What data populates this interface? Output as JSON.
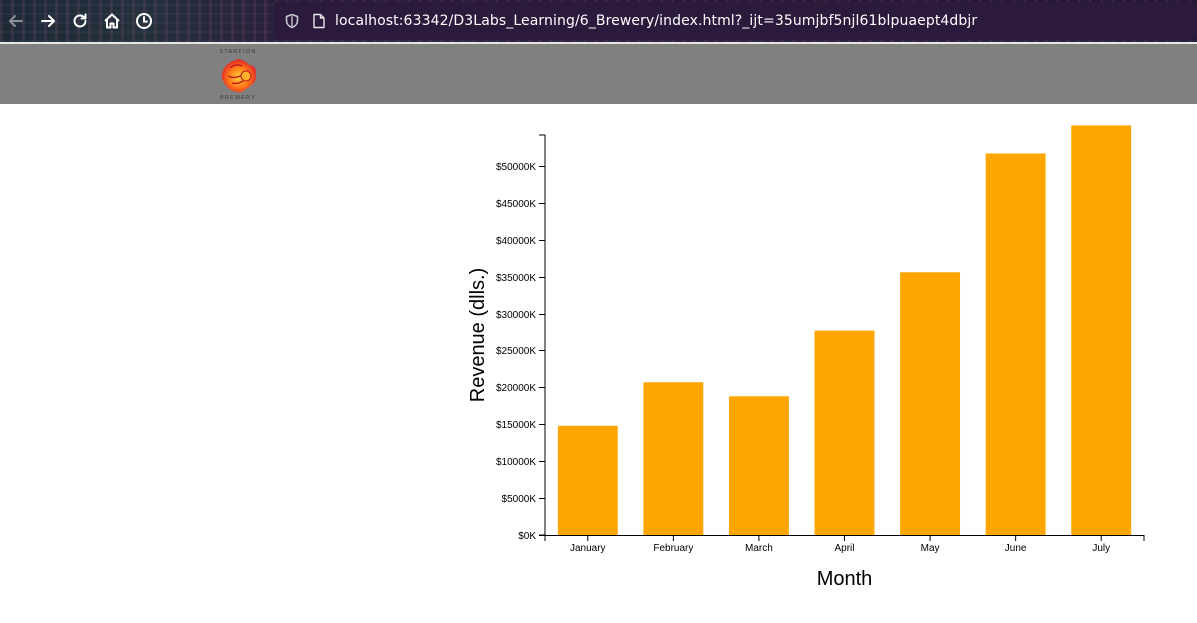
{
  "browser": {
    "url": "localhost:63342/D3Labs_Learning/6_Brewery/index.html?_ijt=35umjbf5njl61blpuaept4dbjr"
  },
  "header": {
    "logo_top_text": "STARFION",
    "logo_bottom_text": "BREWERY"
  },
  "chart_data": {
    "type": "bar",
    "categories": [
      "January",
      "February",
      "March",
      "April",
      "May",
      "June",
      "July"
    ],
    "values": [
      14800,
      20700,
      18800,
      27700,
      35600,
      51700,
      55500
    ],
    "xlabel": "Month",
    "ylabel": "Revenue (dlls.)",
    "ylim": [
      0,
      54200
    ],
    "yticks": [
      0,
      5000,
      10000,
      15000,
      20000,
      25000,
      30000,
      35000,
      40000,
      45000,
      50000
    ],
    "ytick_labels": [
      "$0K",
      "$5000K",
      "$10000K",
      "$15000K",
      "$20000K",
      "$25000K",
      "$30000K",
      "$35000K",
      "$40000K",
      "$45000K",
      "$50000K"
    ],
    "bar_color": "#FFA500",
    "grid": false,
    "legend": "none"
  }
}
